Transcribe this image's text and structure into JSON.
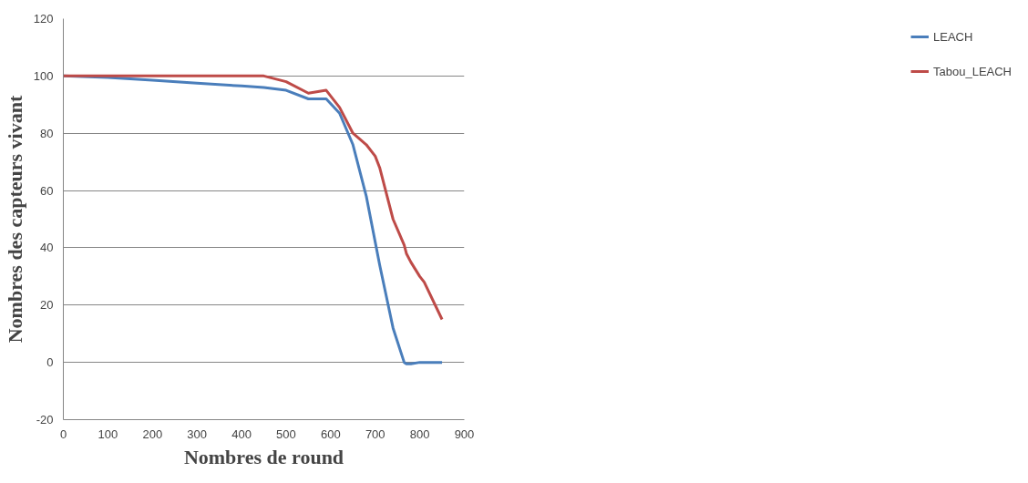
{
  "chart_data": {
    "type": "line",
    "xlabel": "Nombres de round",
    "ylabel": "Nombres des capteurs vivant",
    "x": [
      0,
      100,
      200,
      300,
      400,
      450,
      500,
      550,
      590,
      620,
      650,
      680,
      700,
      710,
      740,
      765,
      770,
      780,
      800,
      810,
      850
    ],
    "series": [
      {
        "name": "LEACH",
        "color": "#4a7ebb",
        "values": [
          100,
          99.5,
          98.5,
          97.5,
          96.5,
          96,
          95,
          92,
          92,
          87,
          76,
          58,
          42,
          34,
          12,
          0,
          -0.5,
          -0.5,
          0,
          0,
          0
        ]
      },
      {
        "name": "Tabou_LEACH",
        "color": "#be4b48",
        "values": [
          100,
          100,
          100,
          100,
          100,
          100,
          98,
          94,
          95,
          89,
          80,
          76,
          72,
          68,
          50,
          41,
          38,
          35,
          30,
          28,
          15
        ]
      }
    ],
    "xlim": [
      0,
      900
    ],
    "xticks": [
      0,
      100,
      200,
      300,
      400,
      500,
      600,
      700,
      800,
      900
    ],
    "ylim": [
      -20,
      120
    ],
    "yticks": [
      -20,
      0,
      20,
      40,
      60,
      80,
      100,
      120
    ],
    "grid": "y",
    "legend": "right",
    "marker": "none",
    "line_style": "solid"
  }
}
